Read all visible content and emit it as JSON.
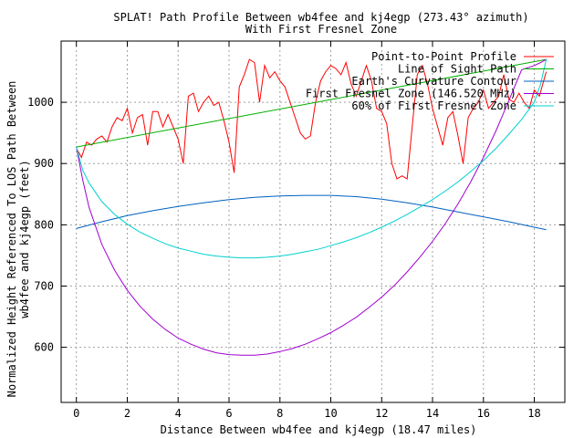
{
  "chart_data": {
    "type": "line",
    "title": "SPLAT! Path Profile Between wb4fee and kj4egp (273.43° azimuth)",
    "subtitle": "With First Fresnel Zone",
    "xlabel": "Distance Between wb4fee and kj4egp (18.47 miles)",
    "ylabel_line1": "Normalized Height Referenced To LOS Path Between",
    "ylabel_line2": "wb4fee and kj4egp (feet)",
    "xlim": [
      -0.6,
      19.2
    ],
    "ylim": [
      510,
      1100
    ],
    "x_ticks": [
      0,
      2,
      4,
      6,
      8,
      10,
      12,
      14,
      16,
      18
    ],
    "x_tick_labels": [
      "0",
      "2",
      "4",
      "6",
      "8",
      "10",
      "12",
      "14",
      "16",
      "18"
    ],
    "y_ticks": [
      600,
      700,
      800,
      900,
      1000
    ],
    "y_tick_labels": [
      "600",
      "700",
      "800",
      "900",
      "1000"
    ],
    "grid": true,
    "legend_position": "top-right",
    "series": [
      {
        "name": "Point-to-Point Profile",
        "color": "#ff0000",
        "x": [
          0,
          0.2,
          0.4,
          0.6,
          0.8,
          1.0,
          1.2,
          1.4,
          1.6,
          1.8,
          2.0,
          2.2,
          2.4,
          2.6,
          2.8,
          3.0,
          3.2,
          3.4,
          3.6,
          3.8,
          4.0,
          4.2,
          4.4,
          4.6,
          4.8,
          5.0,
          5.2,
          5.4,
          5.6,
          5.8,
          6.0,
          6.2,
          6.4,
          6.6,
          6.8,
          7.0,
          7.2,
          7.4,
          7.6,
          7.8,
          8.0,
          8.2,
          8.4,
          8.6,
          8.8,
          9.0,
          9.2,
          9.4,
          9.6,
          9.8,
          10.0,
          10.2,
          10.4,
          10.6,
          10.8,
          11.0,
          11.2,
          11.4,
          11.6,
          11.8,
          12.0,
          12.2,
          12.4,
          12.6,
          12.8,
          13.0,
          13.2,
          13.4,
          13.6,
          13.8,
          14.0,
          14.2,
          14.4,
          14.6,
          14.8,
          15.0,
          15.2,
          15.4,
          15.6,
          15.8,
          16.0,
          16.2,
          16.4,
          16.6,
          16.8,
          17.0,
          17.2,
          17.4,
          17.6,
          17.8,
          18.0,
          18.2,
          18.47
        ],
        "y": [
          925,
          910,
          935,
          930,
          940,
          945,
          935,
          960,
          975,
          970,
          990,
          950,
          975,
          980,
          930,
          985,
          985,
          960,
          980,
          960,
          940,
          900,
          1010,
          1015,
          985,
          1000,
          1010,
          995,
          1000,
          970,
          935,
          885,
          1025,
          1045,
          1070,
          1065,
          1000,
          1060,
          1040,
          1050,
          1035,
          1025,
          1000,
          975,
          950,
          940,
          945,
          1000,
          1035,
          1050,
          1060,
          1055,
          1045,
          1065,
          1030,
          1010,
          1035,
          1060,
          1035,
          990,
          985,
          965,
          900,
          875,
          880,
          875,
          960,
          1045,
          1060,
          1030,
          990,
          960,
          930,
          975,
          985,
          945,
          900,
          975,
          990,
          1000,
          1020,
          990,
          1000,
          1010,
          1045,
          1005,
          1000,
          1015,
          1000,
          990,
          1020,
          1010,
          1050
        ]
      },
      {
        "name": "Line of Sight Path",
        "color": "#00b000",
        "x": [
          0,
          18.47
        ],
        "y": [
          927,
          1070
        ]
      },
      {
        "name": "Earth's Curvature Contour",
        "color": "#0060c0",
        "x": [
          0,
          1,
          2,
          3,
          4,
          5,
          6,
          7,
          8,
          9,
          10,
          11,
          12,
          13,
          14,
          15,
          16,
          17,
          18,
          18.47
        ],
        "y": [
          794,
          805,
          815,
          823,
          830,
          836,
          841,
          845,
          847,
          848,
          848,
          846,
          842,
          836,
          829,
          821,
          813,
          805,
          796,
          792
        ]
      },
      {
        "name": "First Fresnel Zone (146.520 MHz)",
        "color": "#a000d0",
        "x": [
          0,
          0.25,
          0.5,
          1,
          1.5,
          2,
          2.5,
          3,
          3.5,
          4,
          4.5,
          5,
          5.5,
          6,
          6.5,
          7,
          7.5,
          8,
          8.5,
          9,
          9.5,
          10,
          10.5,
          11,
          11.5,
          12,
          12.5,
          13,
          13.5,
          14,
          14.5,
          15,
          15.5,
          16,
          16.5,
          17,
          17.5,
          18,
          18.25,
          18.47
        ],
        "y": [
          927,
          873,
          828,
          768,
          726,
          693,
          667,
          646,
          629,
          615,
          605,
          597,
          591,
          588,
          587,
          587,
          589,
          593,
          598,
          605,
          614,
          624,
          636,
          649,
          665,
          682,
          701,
          723,
          747,
          773,
          802,
          834,
          870,
          910,
          954,
          1003,
          1053,
          1060,
          1065,
          1070
        ]
      },
      {
        "name": "60% of First Fresnel Zone",
        "color": "#00d0d0",
        "x": [
          0,
          0.25,
          0.5,
          1,
          1.5,
          2,
          2.5,
          3,
          3.5,
          4,
          4.5,
          5,
          5.5,
          6,
          6.5,
          7,
          7.5,
          8,
          8.5,
          9,
          9.5,
          10,
          10.5,
          11,
          11.5,
          12,
          12.5,
          13,
          13.5,
          14,
          14.5,
          15,
          15.5,
          16,
          16.5,
          17,
          17.5,
          18,
          18.25,
          18.47
        ],
        "y": [
          927,
          889,
          868,
          838,
          817,
          801,
          788,
          778,
          769,
          762,
          757,
          752,
          749,
          747,
          746,
          746,
          747,
          749,
          752,
          756,
          760,
          766,
          772,
          779,
          787,
          796,
          806,
          817,
          829,
          841,
          855,
          870,
          887,
          905,
          925,
          948,
          972,
          1000,
          1030,
          1070
        ]
      }
    ]
  }
}
